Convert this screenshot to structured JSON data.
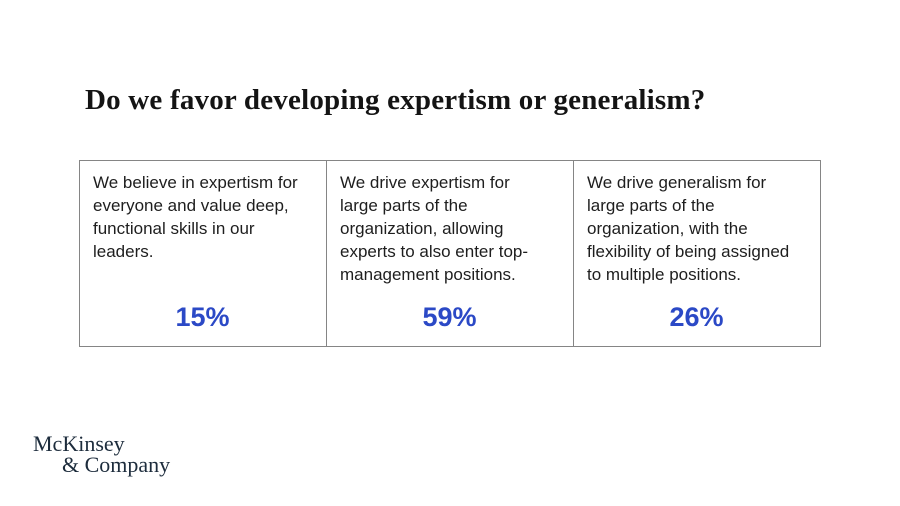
{
  "title": "Do we favor developing expertism or generalism?",
  "cards": [
    {
      "description": "We believe in expertism for\neveryone and value deep,\nfunctional skills in our\nleaders.",
      "value": "15%"
    },
    {
      "description": "We drive expertism for\nlarge parts of the\norganization, allowing\nexperts to also enter top-\nmanagement positions.",
      "value": "59%"
    },
    {
      "description": "We drive generalism for\nlarge parts of the\norganization, with the\nflexibility of being assigned\nto multiple positions.",
      "value": "26%"
    }
  ],
  "logo": {
    "line1": "McKinsey",
    "line2": "& Company"
  },
  "colors": {
    "accent_blue": "#2b49c6",
    "border_gray": "#858585",
    "logo_navy": "#1d2c3c",
    "title_black": "#141414"
  }
}
